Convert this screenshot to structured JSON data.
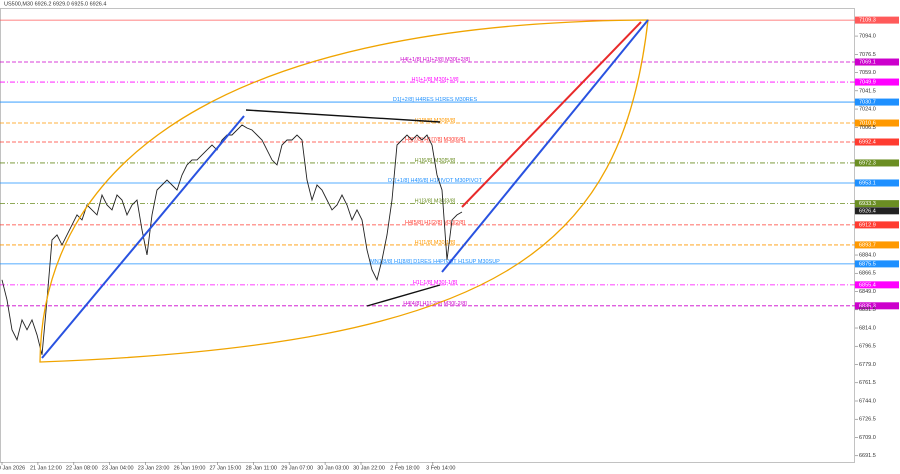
{
  "chart_data": {
    "type": "line",
    "title": "US500,M30 6926.2 6929.0 6925.0 6926.4",
    "color": "#222222",
    "ylim": [
      6685.5,
      7119
    ],
    "yticks": [
      {
        "value": 7094,
        "label": "7094.0"
      },
      7076.5,
      {
        "value": 7059,
        "label": "7059.0"
      },
      7041.5,
      {
        "value": 7024,
        "label": "7024.0"
      },
      7006.5,
      {
        "value": 6884,
        "label": "6884.0"
      },
      6866.5,
      {
        "value": 6849,
        "label": "6849.0"
      },
      6831.5,
      {
        "value": 6814,
        "label": "6814.0"
      },
      6796.5,
      {
        "value": 6779,
        "label": "6779.0"
      },
      6761.5,
      {
        "value": 6744,
        "label": "6744.0"
      },
      6726.5,
      {
        "value": 6709,
        "label": "6709.0"
      },
      6691.5
    ],
    "x_labels": [
      "20 Jan 2026",
      "21 Jan 12:00",
      "22 Jan 08:00",
      "23 Jan 04:00",
      "23 Jan 23:00",
      "26 Jan 19:00",
      "27 Jan 15:00",
      "28 Jan 11:00",
      "29 Jan 07:00",
      "30 Jan 03:00",
      "30 Jan 22:00",
      "2 Feb 18:00",
      "3 Feb 14:00"
    ],
    "values": [
      6860.2,
      6841.0,
      6812.3,
      6802.7,
      6821.8,
      6812.3,
      6821.8,
      6807.5,
      6788.3,
      6841.0,
      6898.5,
      6903.3,
      6893.7,
      6903.3,
      6912.9,
      6922.5,
      6917.7,
      6932.0,
      6927.3,
      6922.5,
      6941.6,
      6932.0,
      6927.3,
      6941.6,
      6936.8,
      6922.5,
      6932.0,
      6936.8,
      6908.1,
      6884.1,
      6922.5,
      6946.4,
      6951.2,
      6956.0,
      6951.2,
      6946.4,
      6960.8,
      6970.4,
      6975.2,
      6975.2,
      6980.0,
      6984.8,
      6989.5,
      6984.8,
      6994.3,
      6999.1,
      6999.1,
      7003.9,
      7008.7,
      7005.8,
      7003.9,
      6999.1,
      6994.3,
      6984.8,
      6975.2,
      6970.4,
      6989.5,
      6994.3,
      6994.3,
      6999.1,
      6994.3,
      6956.0,
      6936.8,
      6951.2,
      6946.4,
      6936.8,
      6927.3,
      6932.0,
      6941.6,
      6932.0,
      6917.7,
      6927.3,
      6917.7,
      6888.9,
      6869.8,
      6860.2,
      6879.3,
      6903.3,
      6936.8,
      6989.5,
      6994.3,
      6999.1,
      6994.3,
      6999.1,
      6994.3,
      6999.1,
      6989.5,
      6960.8,
      6946.4,
      6879.3,
      6917.7,
      6922.5,
      6925.3
    ],
    "current_price": 6926.4,
    "levels": [
      {
        "label": "",
        "value": 7109.3,
        "color": "#ff5a5a",
        "style": "solid"
      },
      {
        "label": "H4[+1/8] H1[+2/8] M30[+2/8]",
        "value": 7069.1,
        "color": "#cc00cc",
        "style": "dash"
      },
      {
        "label": "H1[+1/8] M30[+1/8]",
        "value": 7049.9,
        "color": "#ff00ff",
        "style": "dashdot"
      },
      {
        "label": "D1[+2/8] H4RES H1RES M30RES",
        "value": 7030.7,
        "color": "#1e90ff",
        "style": "solid"
      },
      {
        "label": "H1[8/8] M30[8/8]",
        "value": 7010.6,
        "color": "#ff9900",
        "style": "dash"
      },
      {
        "label": "H4[7/8] H1[7/8] M30[6/8]",
        "value": 6992.4,
        "color": "#ff3b30",
        "style": "dash"
      },
      {
        "label": "H1[6/8] M30[5/8]",
        "value": 6972.3,
        "color": "#6b8e23",
        "style": "dashdot"
      },
      {
        "label": "D1[+1/8] H4[6/8] H1PIVOT M30PIVOT",
        "value": 6953.1,
        "color": "#1e90ff",
        "style": "solid"
      },
      {
        "label": "H1[3/8] M30[3/8]",
        "value": 6933.3,
        "color": "#6b8e23",
        "style": "dashdot"
      },
      {
        "label": "H4[5/8] H1[2/8] M30[2/8]",
        "value": 6912.9,
        "color": "#ff3b30",
        "style": "dash"
      },
      {
        "label": "H1[1/8] M30[1/8]",
        "value": 6893.7,
        "color": "#ff9900",
        "style": "dash"
      },
      {
        "label": "MN1[8/8] H1[8/8] D1RES H4PIVOT H1SUP M30SUP",
        "value": 6875.5,
        "color": "#1e90ff",
        "style": "solid"
      },
      {
        "label": "H1[-1/8] M30[-1/8]",
        "value": 6855.4,
        "color": "#ff00ff",
        "style": "dashdot"
      },
      {
        "label": "H4[4/8] H1[-2/8] M30[-2/8]",
        "value": 6835.3,
        "color": "#cc00cc",
        "style": "dash"
      }
    ]
  }
}
